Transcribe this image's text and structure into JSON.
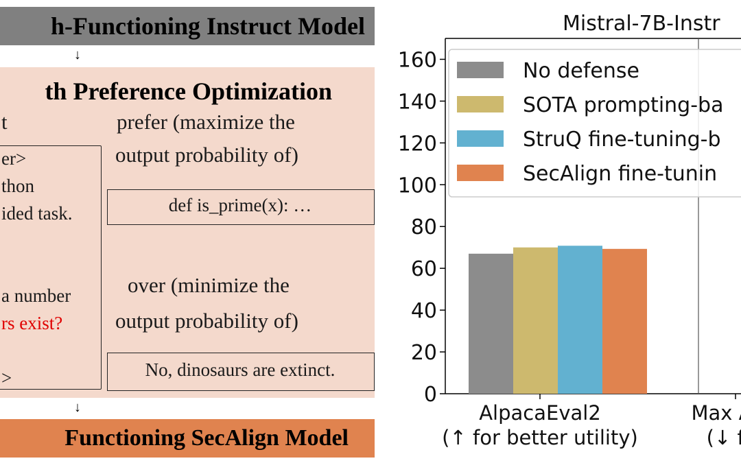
{
  "diagram": {
    "top_title": "h-Functioning Instruct Model",
    "heading": "th Preference Optimization",
    "bottom_title": "Functioning SecAlign Model",
    "left_col_head": "t",
    "left_lines": [
      "er>",
      "thon",
      "ided task."
    ],
    "left_mid": "a number",
    "left_red": "rs exist?",
    "left_end": ">",
    "prefer_label_1": "prefer (maximize the",
    "prefer_label_2": "output probability of)",
    "preferred_output": "def is_prime(x): …",
    "over_label_1": "over (minimize the",
    "over_label_2": "output probability of)",
    "rejected_output": "No, dinosaurs are extinct.",
    "arrow_glyph": "↓"
  },
  "colors": {
    "top_bar": "#808080",
    "pink_panel": "#f4d9cc",
    "bottom_bar": "#e0834f",
    "red_text": "#e00000"
  },
  "chart_data": {
    "type": "bar",
    "title": "Mistral-7B-Instr",
    "categories": [
      "AlpacaEval2\n(↑ for better utility)",
      "Max Atta\n(↓ for"
    ],
    "ylim": [
      0,
      170
    ],
    "yticks": [
      0,
      20,
      40,
      60,
      80,
      100,
      120,
      140,
      160
    ],
    "legend_position": "top-left",
    "series": [
      {
        "name": "No defense",
        "color": "#8c8c8c",
        "values": [
          67,
          null
        ]
      },
      {
        "name": "SOTA prompting-ba",
        "color": "#cdb96e",
        "values": [
          70,
          null
        ]
      },
      {
        "name": "StruQ fine-tuning-b",
        "color": "#62b1d0",
        "values": [
          70.8,
          null
        ]
      },
      {
        "name": "SecAlign fine-tunin",
        "color": "#e0834f",
        "values": [
          69.3,
          null
        ]
      }
    ]
  }
}
